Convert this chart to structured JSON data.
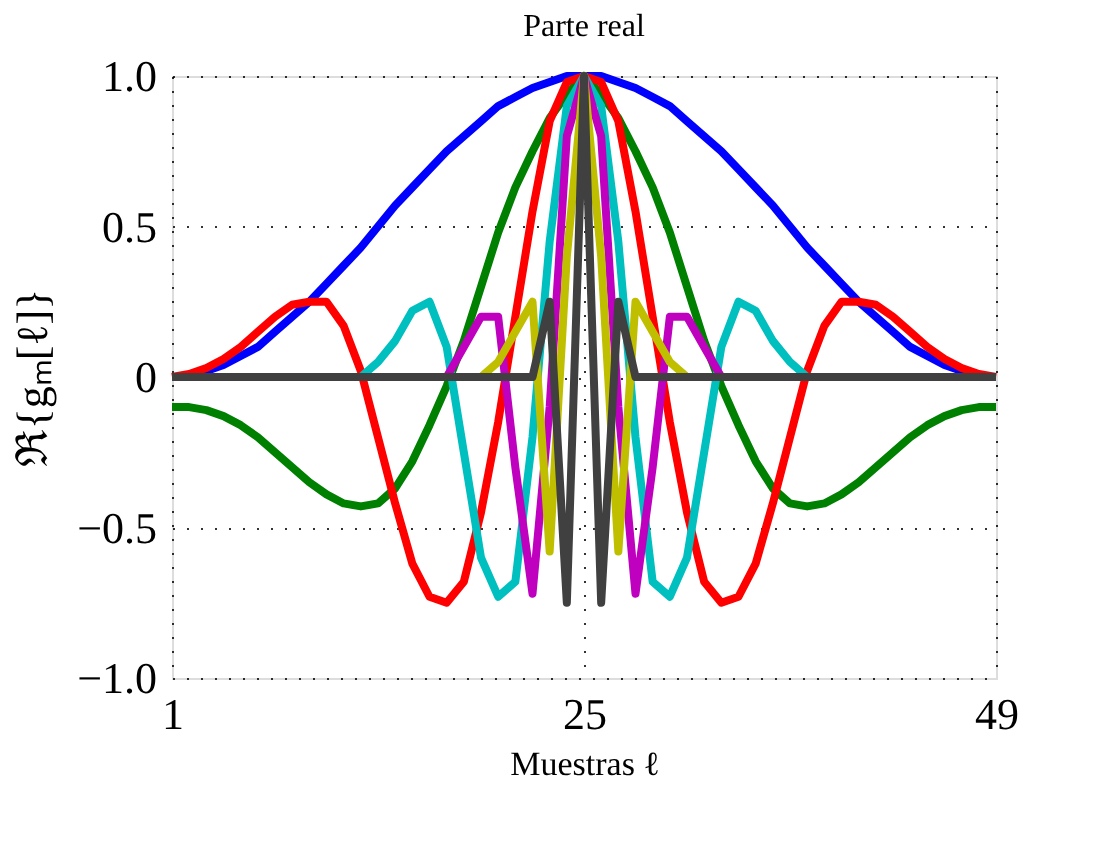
{
  "chart_data": {
    "type": "line",
    "title": "Parte real",
    "xlabel": "Muestras  ℓ",
    "ylabel": "ℜ{gₘ[ℓ]}",
    "x": [
      1,
      2,
      3,
      4,
      5,
      6,
      7,
      8,
      9,
      10,
      11,
      12,
      13,
      14,
      15,
      16,
      17,
      18,
      19,
      20,
      21,
      22,
      23,
      24,
      25,
      26,
      27,
      28,
      29,
      30,
      31,
      32,
      33,
      34,
      35,
      36,
      37,
      38,
      39,
      40,
      41,
      42,
      43,
      44,
      45,
      46,
      47,
      48,
      49
    ],
    "series": [
      {
        "color": "#0000ff",
        "values": [
          0,
          0,
          0.02,
          0.04,
          0.07,
          0.1,
          0.15,
          0.2,
          0.25,
          0.31,
          0.37,
          0.43,
          0.5,
          0.57,
          0.63,
          0.69,
          0.75,
          0.8,
          0.85,
          0.9,
          0.93,
          0.96,
          0.98,
          1,
          1,
          1,
          0.98,
          0.96,
          0.93,
          0.9,
          0.85,
          0.8,
          0.75,
          0.69,
          0.63,
          0.57,
          0.5,
          0.43,
          0.37,
          0.31,
          0.25,
          0.2,
          0.15,
          0.1,
          0.07,
          0.04,
          0.02,
          0,
          0
        ]
      },
      {
        "color": "#008000",
        "values": [
          -0.1,
          -0.1,
          -0.11,
          -0.13,
          -0.16,
          -0.2,
          -0.25,
          -0.3,
          -0.35,
          -0.39,
          -0.42,
          -0.43,
          -0.42,
          -0.37,
          -0.28,
          -0.16,
          -0.03,
          0.12,
          0.3,
          0.48,
          0.63,
          0.75,
          0.86,
          0.94,
          1,
          0.94,
          0.86,
          0.75,
          0.63,
          0.48,
          0.3,
          0.12,
          -0.03,
          -0.16,
          -0.28,
          -0.37,
          -0.42,
          -0.43,
          -0.42,
          -0.39,
          -0.35,
          -0.3,
          -0.25,
          -0.2,
          -0.16,
          -0.13,
          -0.11,
          -0.1,
          -0.1
        ]
      },
      {
        "color": "#ff0000",
        "values": [
          0,
          0.01,
          0.03,
          0.06,
          0.1,
          0.15,
          0.2,
          0.24,
          0.25,
          0.25,
          0.17,
          0.02,
          -0.2,
          -0.42,
          -0.62,
          -0.73,
          -0.75,
          -0.68,
          -0.45,
          -0.15,
          0.2,
          0.55,
          0.85,
          0.98,
          1,
          0.98,
          0.85,
          0.55,
          0.2,
          -0.15,
          -0.45,
          -0.68,
          -0.75,
          -0.73,
          -0.62,
          -0.42,
          -0.2,
          0.02,
          0.17,
          0.25,
          0.25,
          0.24,
          0.2,
          0.15,
          0.1,
          0.06,
          0.03,
          0.01,
          0
        ]
      },
      {
        "color": "#00bfbf",
        "values": [
          null,
          null,
          null,
          null,
          null,
          null,
          null,
          null,
          null,
          0,
          0,
          0,
          0.05,
          0.12,
          0.22,
          0.25,
          0.1,
          -0.25,
          -0.6,
          -0.73,
          -0.68,
          -0.2,
          0.45,
          0.9,
          1,
          0.9,
          0.45,
          -0.2,
          -0.68,
          -0.73,
          -0.6,
          -0.25,
          0.1,
          0.25,
          0.22,
          0.12,
          0.05,
          0,
          0,
          null,
          null,
          null,
          null,
          null,
          null,
          null,
          null,
          null,
          null
        ]
      },
      {
        "color": "#bf00bf",
        "values": [
          null,
          null,
          null,
          null,
          null,
          null,
          null,
          null,
          null,
          null,
          null,
          null,
          null,
          null,
          null,
          0,
          0,
          0.1,
          0.2,
          0.2,
          -0.3,
          -0.72,
          -0.1,
          0.8,
          1,
          0.8,
          -0.1,
          -0.72,
          -0.3,
          0.2,
          0.2,
          0.1,
          0,
          0,
          null,
          null,
          null,
          null,
          null,
          null,
          null,
          null,
          null,
          null,
          null,
          null,
          null,
          null,
          null
        ]
      },
      {
        "color": "#bfbf00",
        "values": [
          null,
          null,
          null,
          null,
          null,
          null,
          null,
          null,
          null,
          null,
          null,
          null,
          null,
          null,
          null,
          null,
          null,
          0,
          0,
          0.05,
          0.15,
          0.25,
          -0.58,
          0.4,
          1,
          0.4,
          -0.58,
          0.25,
          0.15,
          0.05,
          0,
          0,
          null,
          null,
          null,
          null,
          null,
          null,
          null,
          null,
          null,
          null,
          null,
          null,
          null,
          null,
          null,
          null,
          null
        ]
      },
      {
        "color": "#404040",
        "values": [
          0,
          0,
          0,
          0,
          0,
          0,
          0,
          0,
          0,
          0,
          0,
          0,
          0,
          0,
          0,
          0,
          0,
          0,
          0,
          0,
          0,
          0,
          0.25,
          -0.75,
          1,
          -0.75,
          0.25,
          0,
          0,
          0,
          0,
          0,
          0,
          0,
          0,
          0,
          0,
          0,
          0,
          0,
          0,
          0,
          0,
          0,
          0,
          0,
          0,
          0,
          0
        ]
      }
    ],
    "xlim": [
      1,
      49
    ],
    "xticks": [
      1,
      25,
      49
    ],
    "ylim": [
      -1,
      1
    ],
    "yticks": [
      {
        "value": -1,
        "label": "−1.0"
      },
      {
        "value": -0.5,
        "label": "−0.5"
      },
      0,
      {
        "value": 0.5,
        "label": "0.5"
      },
      {
        "value": 1,
        "label": "1.0"
      }
    ],
    "grid": true,
    "marker": "none",
    "line_style": "solid"
  }
}
